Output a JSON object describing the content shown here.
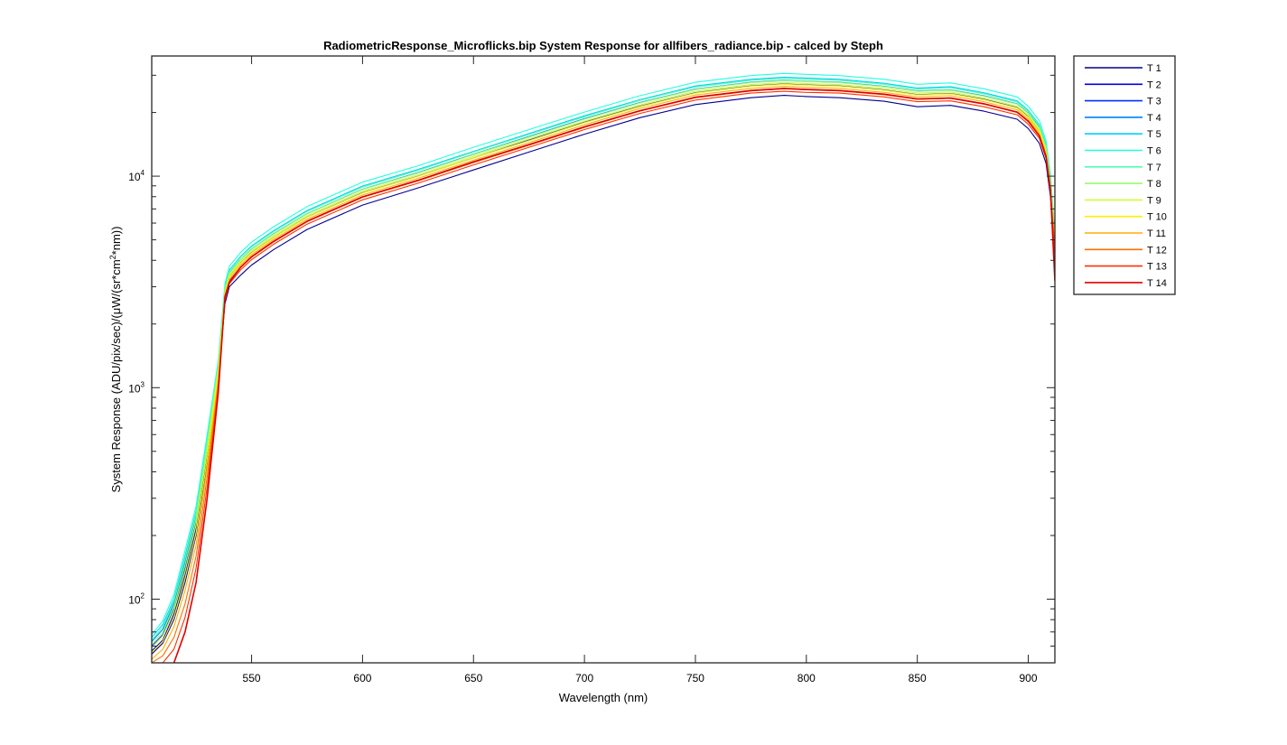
{
  "chart_data": {
    "type": "line",
    "title": "RadiometricResponse_Microflicks.bip  System Response for allfibers_radiance.bip - calced by Steph",
    "xlabel": "Wavelength (nm)",
    "ylabel": "System Response (ADU/pix/sec)/(μW/(sr*cm²*nm))",
    "ylabel_parts": {
      "before": "System Response (ADU/pix/sec)/(μW/(sr*cm",
      "sup": "2",
      "after": "*nm))"
    },
    "x_scale": "linear",
    "y_scale": "log",
    "xlim": [
      505,
      912
    ],
    "ylim": [
      50,
      37000
    ],
    "xticks": [
      550,
      600,
      650,
      700,
      750,
      800,
      850,
      900
    ],
    "xtick_labels": [
      "550",
      "600",
      "650",
      "700",
      "750",
      "800",
      "850",
      "900"
    ],
    "yticks": [
      100,
      1000,
      10000
    ],
    "ytick_labels": [
      {
        "base": "10",
        "exp": "2"
      },
      {
        "base": "10",
        "exp": "3"
      },
      {
        "base": "10",
        "exp": "4"
      }
    ],
    "grid": false,
    "legend_position": "outside-right",
    "x": [
      505,
      510,
      515,
      520,
      525,
      530,
      535,
      538,
      540,
      545,
      550,
      560,
      575,
      600,
      625,
      650,
      675,
      700,
      725,
      750,
      775,
      790,
      800,
      815,
      835,
      850,
      865,
      880,
      895,
      900,
      905,
      908,
      910,
      912
    ],
    "series": [
      {
        "name": "T 1",
        "color": "#00008f",
        "values": [
          55,
          62,
          80,
          120,
          200,
          450,
          1100,
          2500,
          3000,
          3400,
          3800,
          4500,
          5600,
          7300,
          8800,
          10700,
          13000,
          15800,
          18900,
          21800,
          23500,
          24100,
          23800,
          23500,
          22600,
          21300,
          21600,
          20300,
          18600,
          16800,
          14300,
          11500,
          8000,
          4200
        ]
      },
      {
        "name": "T 2",
        "color": "#0000df",
        "values": [
          57,
          64,
          85,
          130,
          215,
          480,
          1150,
          2650,
          3200,
          3700,
          4150,
          4900,
          6100,
          7950,
          9550,
          11600,
          14100,
          17100,
          20400,
          23600,
          25400,
          26000,
          25700,
          25400,
          24400,
          23100,
          23400,
          22000,
          20100,
          18200,
          15500,
          12500,
          8700,
          4500
        ]
      },
      {
        "name": "T 3",
        "color": "#0030ff",
        "values": [
          60,
          68,
          90,
          140,
          230,
          510,
          1200,
          2800,
          3350,
          3880,
          4350,
          5140,
          6400,
          8350,
          10000,
          12200,
          14800,
          18000,
          21400,
          24800,
          26700,
          27300,
          27000,
          26700,
          25600,
          24300,
          24600,
          23100,
          21100,
          19100,
          16300,
          13100,
          9100,
          4700
        ]
      },
      {
        "name": "T 4",
        "color": "#0080ff",
        "values": [
          63,
          72,
          95,
          150,
          245,
          540,
          1250,
          2900,
          3480,
          4030,
          4520,
          5350,
          6650,
          8680,
          10400,
          12700,
          15400,
          18700,
          22300,
          25800,
          27800,
          28400,
          28100,
          27800,
          26600,
          25300,
          25600,
          24000,
          22000,
          19900,
          17000,
          13600,
          9500,
          4900
        ]
      },
      {
        "name": "T 5",
        "color": "#00cfff",
        "values": [
          66,
          76,
          100,
          160,
          260,
          570,
          1300,
          3000,
          3600,
          4170,
          4680,
          5530,
          6880,
          8980,
          10750,
          13100,
          15900,
          19300,
          23000,
          26700,
          28700,
          29400,
          29100,
          28700,
          27500,
          26100,
          26500,
          24800,
          22700,
          20500,
          17500,
          14100,
          9800,
          5100
        ]
      },
      {
        "name": "T 6",
        "color": "#20ffdf",
        "values": [
          68,
          79,
          105,
          170,
          275,
          600,
          1350,
          3100,
          3750,
          4350,
          4880,
          5770,
          7180,
          9370,
          11200,
          13700,
          16600,
          20100,
          24000,
          27800,
          29900,
          30600,
          30300,
          29900,
          28700,
          27200,
          27600,
          25900,
          23700,
          21400,
          18300,
          14700,
          10200,
          5300
        ]
      },
      {
        "name": "T 7",
        "color": "#50ffaf",
        "values": [
          64,
          74,
          98,
          155,
          255,
          560,
          1300,
          2950,
          3560,
          4130,
          4630,
          5470,
          6810,
          8880,
          10650,
          13000,
          15750,
          19100,
          22800,
          26400,
          28400,
          29000,
          28700,
          28400,
          27200,
          25800,
          26200,
          24500,
          22400,
          20300,
          17300,
          13900,
          9700,
          5000
        ]
      },
      {
        "name": "T 8",
        "color": "#90ff70",
        "values": [
          61,
          70,
          92,
          145,
          240,
          530,
          1250,
          2880,
          3470,
          4020,
          4510,
          5330,
          6630,
          8650,
          10350,
          12650,
          15300,
          18600,
          22200,
          25700,
          27700,
          28300,
          28000,
          27700,
          26500,
          25200,
          25500,
          23900,
          21900,
          19800,
          16900,
          13600,
          9400,
          4900
        ]
      },
      {
        "name": "T 9",
        "color": "#cfff30",
        "values": [
          59,
          67,
          88,
          135,
          225,
          500,
          1200,
          2830,
          3400,
          3940,
          4420,
          5230,
          6500,
          8480,
          10150,
          12400,
          15000,
          18200,
          21700,
          25200,
          27100,
          27700,
          27400,
          27100,
          26000,
          24700,
          25000,
          23400,
          21400,
          19400,
          16500,
          13300,
          9200,
          4800
        ]
      },
      {
        "name": "T 10",
        "color": "#ffef00",
        "values": [
          56,
          63,
          82,
          125,
          205,
          460,
          1150,
          2780,
          3340,
          3870,
          4340,
          5130,
          6390,
          8330,
          9970,
          12200,
          14700,
          17900,
          21300,
          24700,
          26600,
          27200,
          26900,
          26600,
          25500,
          24200,
          24500,
          23000,
          21000,
          19000,
          16200,
          13000,
          9000,
          4700
        ]
      },
      {
        "name": "T 11",
        "color": "#ffaf00",
        "values": [
          52,
          58,
          74,
          110,
          180,
          420,
          1100,
          2720,
          3270,
          3790,
          4250,
          5030,
          6250,
          8150,
          9760,
          11900,
          14400,
          17500,
          20900,
          24200,
          26000,
          26600,
          26300,
          26000,
          24900,
          23700,
          24000,
          22500,
          20600,
          18600,
          15900,
          12800,
          8900,
          4600
        ]
      },
      {
        "name": "T 12",
        "color": "#ff6f00",
        "values": [
          50,
          54,
          66,
          95,
          160,
          380,
          1050,
          2650,
          3180,
          3690,
          4140,
          4890,
          6090,
          7940,
          9500,
          11600,
          14000,
          17000,
          20300,
          23500,
          25300,
          25900,
          25600,
          25300,
          24300,
          23100,
          23300,
          21900,
          20000,
          18100,
          15500,
          12400,
          8600,
          4500
        ]
      },
      {
        "name": "T 13",
        "color": "#ff3000",
        "values": [
          48,
          50,
          58,
          82,
          140,
          340,
          1000,
          2600,
          3100,
          3600,
          4030,
          4770,
          5930,
          7730,
          9260,
          11300,
          13700,
          16600,
          19800,
          22900,
          24700,
          25200,
          24900,
          24700,
          23700,
          22500,
          22700,
          21300,
          19500,
          17600,
          15100,
          12100,
          8400,
          4300
        ]
      },
      {
        "name": "T 14",
        "color": "#df0000",
        "values": [
          45,
          47,
          50,
          70,
          120,
          300,
          950,
          2700,
          3150,
          3700,
          4160,
          4920,
          6120,
          7980,
          9560,
          11700,
          14100,
          17100,
          20400,
          23600,
          25400,
          26000,
          25700,
          25400,
          24400,
          23200,
          23400,
          22000,
          20100,
          18200,
          15500,
          12400,
          8600,
          3200
        ]
      }
    ]
  }
}
